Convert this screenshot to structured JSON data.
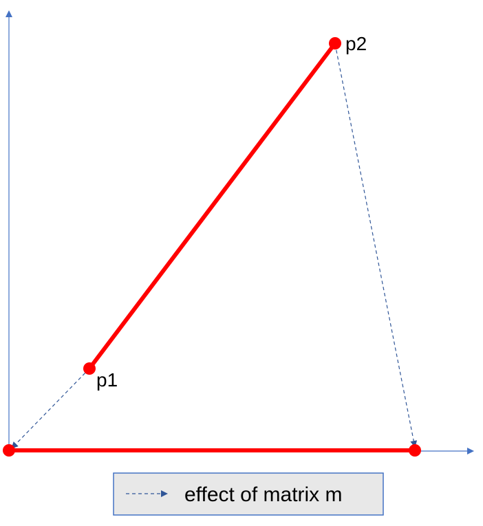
{
  "colors": {
    "axis": "#4472c4",
    "segment": "#ff0000",
    "mapping_arrow": "#2f5597",
    "legend_background": "#e8e8e8",
    "legend_border": "#4472c4"
  },
  "points": {
    "p1": {
      "label": "p1"
    },
    "p2": {
      "label": "p2"
    }
  },
  "legend": {
    "label": "effect of matrix m",
    "symbol": "dashed-arrow"
  }
}
